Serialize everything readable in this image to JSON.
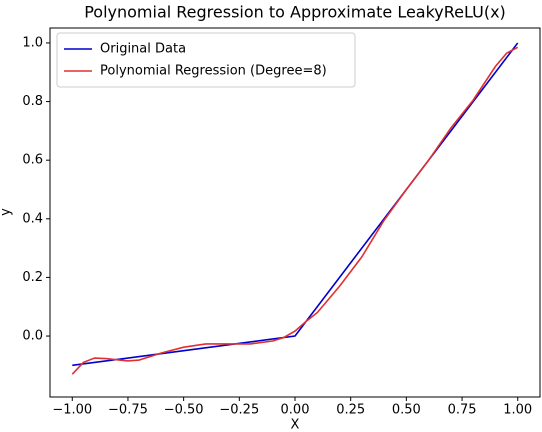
{
  "chart_data": {
    "type": "line",
    "title": "Polynomial Regression to Approximate LeakyReLU(x)",
    "x_label": "X",
    "y_label": "y",
    "xlim": [
      -1.1,
      1.1
    ],
    "ylim": [
      -0.208,
      1.051
    ],
    "xticks": [
      {
        "value": -1,
        "label": "−1.00"
      },
      {
        "value": -0.75,
        "label": "−0.75"
      },
      {
        "value": -0.5,
        "label": "−0.50"
      },
      {
        "value": -0.25,
        "label": "−0.25"
      },
      {
        "value": 0,
        "label": "0.00"
      },
      {
        "value": 0.25,
        "label": "0.25"
      },
      {
        "value": 0.5,
        "label": "0.50"
      },
      {
        "value": 0.75,
        "label": "0.75"
      },
      {
        "value": 1,
        "label": "1.00"
      }
    ],
    "yticks": [
      {
        "value": 0,
        "label": "0.0"
      },
      {
        "value": 0.2,
        "label": "0.2"
      },
      {
        "value": 0.4,
        "label": "0.4"
      },
      {
        "value": 0.6,
        "label": "0.6"
      },
      {
        "value": 0.8,
        "label": "0.8"
      },
      {
        "value": 1,
        "label": "1.0"
      }
    ],
    "legend": "upper left",
    "series": [
      {
        "name": "Original Data",
        "color": "#0000cc",
        "x": [
          -1,
          -0.5,
          0,
          0.5,
          1
        ],
        "values": [
          -0.1,
          -0.05,
          0,
          0.5,
          1
        ]
      },
      {
        "name": "Polynomial Regression (Degree=8)",
        "color": "#e03030",
        "x": [
          -1,
          -0.95,
          -0.9,
          -0.85,
          -0.75,
          -0.7,
          -0.6,
          -0.5,
          -0.4,
          -0.3,
          -0.2,
          -0.1,
          -0.05,
          0,
          0.05,
          0.1,
          0.2,
          0.3,
          0.4,
          0.5,
          0.6,
          0.7,
          0.8,
          0.9,
          0.95,
          1
        ],
        "values": [
          -0.13,
          -0.09,
          -0.075,
          -0.077,
          -0.085,
          -0.082,
          -0.058,
          -0.038,
          -0.027,
          -0.027,
          -0.027,
          -0.017,
          -0.005,
          0.017,
          0.05,
          0.08,
          0.17,
          0.27,
          0.395,
          0.5,
          0.6,
          0.71,
          0.805,
          0.92,
          0.965,
          0.985
        ]
      }
    ]
  }
}
